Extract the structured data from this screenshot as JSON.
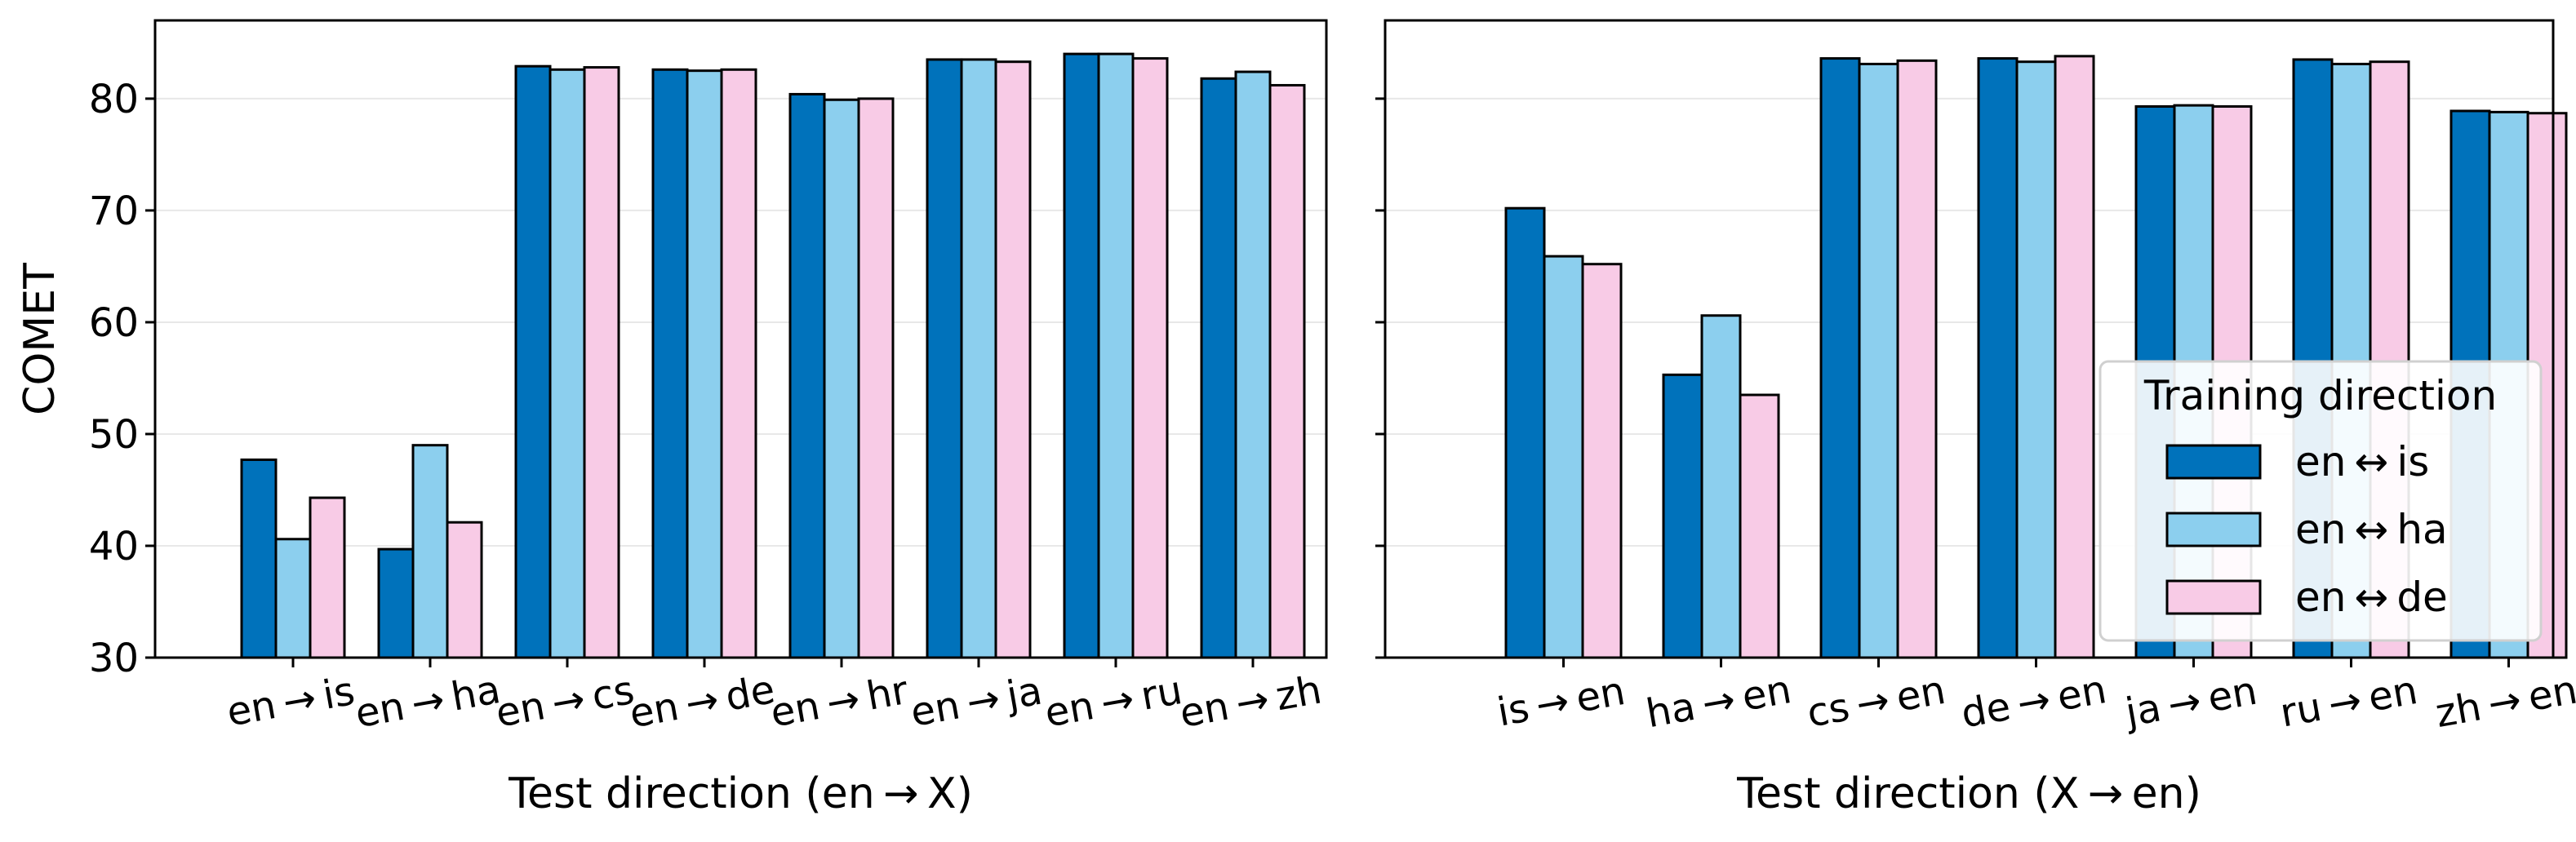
{
  "colors": {
    "en_is": "#0072bb",
    "en_ha": "#8ccfee",
    "en_de": "#f8cbe6",
    "edge": "#000000",
    "grid": "#e8e8e8"
  },
  "legend": {
    "title": "Training direction",
    "placement": "lower-right of right panel",
    "entries": [
      "en ↔ is",
      "en ↔ ha",
      "en ↔ de"
    ]
  },
  "chart_data": [
    {
      "type": "bar",
      "ylabel": "COMET",
      "xlabel": "Test direction (en → X)",
      "ylim": [
        30,
        87
      ],
      "yticks": [
        30,
        40,
        50,
        60,
        70,
        80
      ],
      "grid": true,
      "categories": [
        "en → is",
        "en → ha",
        "en → cs",
        "en → de",
        "en → hr",
        "en → ja",
        "en → ru",
        "en → zh"
      ],
      "series": [
        {
          "name": "en ↔ is",
          "values": [
            47.7,
            39.7,
            82.9,
            82.6,
            80.4,
            83.5,
            84.0,
            81.8
          ]
        },
        {
          "name": "en ↔ ha",
          "values": [
            40.6,
            49.0,
            82.6,
            82.5,
            79.9,
            83.5,
            84.0,
            82.4
          ]
        },
        {
          "name": "en ↔ de",
          "values": [
            44.3,
            42.1,
            82.8,
            82.6,
            80.0,
            83.3,
            83.6,
            81.2
          ]
        }
      ]
    },
    {
      "type": "bar",
      "ylabel": "",
      "xlabel": "Test direction (X → en)",
      "ylim": [
        30,
        87
      ],
      "yticks": [
        30,
        40,
        50,
        60,
        70,
        80
      ],
      "grid": true,
      "categories": [
        "is → en",
        "ha → en",
        "cs → en",
        "de → en",
        "ja → en",
        "ru → en",
        "zh → en"
      ],
      "series": [
        {
          "name": "en ↔ is",
          "values": [
            70.2,
            55.3,
            83.6,
            83.6,
            79.3,
            83.5,
            78.9
          ]
        },
        {
          "name": "en ↔ ha",
          "values": [
            65.9,
            60.6,
            83.1,
            83.3,
            79.4,
            83.1,
            78.8
          ]
        },
        {
          "name": "en ↔ de",
          "values": [
            65.2,
            53.5,
            83.4,
            83.8,
            79.3,
            83.3,
            78.7
          ]
        }
      ]
    }
  ]
}
